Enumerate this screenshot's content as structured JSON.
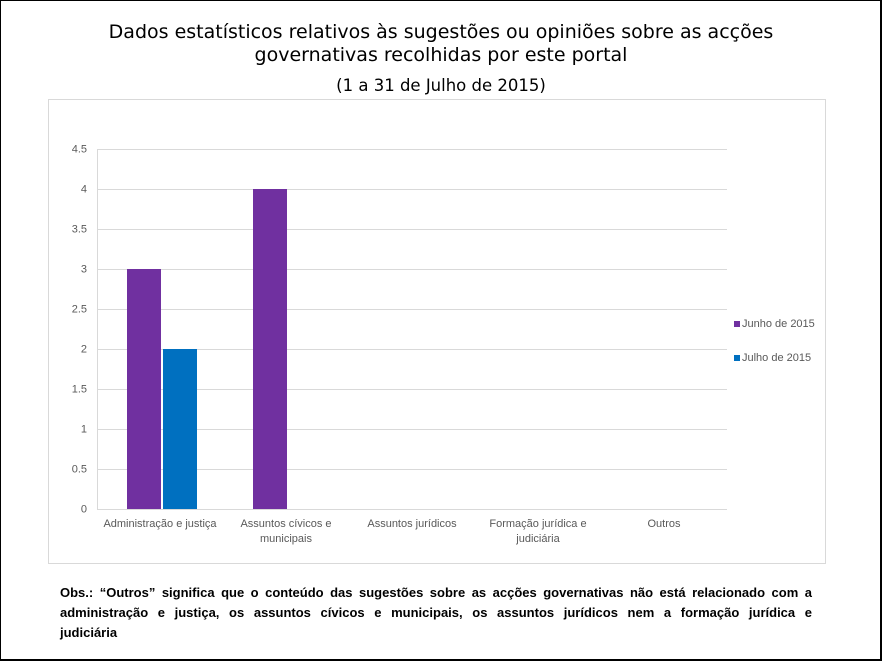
{
  "chart_data": {
    "type": "bar",
    "title": "Dados estatísticos relativos às sugestões ou opiniões sobre as acções governativas recolhidas por este portal",
    "subtitle": "(1 a 31 de Julho de 2015)",
    "categories": [
      "Administração e justiça",
      "Assuntos cívicos e municipais",
      "Assuntos jurídicos",
      "Formação jurídica e judiciária",
      "Outros"
    ],
    "series": [
      {
        "name": "Junho de 2015",
        "color": "#7030A0",
        "values": [
          3,
          4,
          0,
          0,
          0
        ]
      },
      {
        "name": "Julho de 2015",
        "color": "#0070C0",
        "values": [
          2,
          0,
          0,
          0,
          0
        ]
      }
    ],
    "ylim": [
      0,
      4.5
    ],
    "yticks": [
      0,
      0.5,
      1,
      1.5,
      2,
      2.5,
      3,
      3.5,
      4,
      4.5
    ],
    "grid": true,
    "legend": "right"
  },
  "note": "Obs.: “Outros” significa que o conteúdo das sugestões sobre as acções governativas não está relacionado com a administração e justiça, os assuntos cívicos e municipais, os assuntos jurídicos nem a formação jurídica e judiciária"
}
